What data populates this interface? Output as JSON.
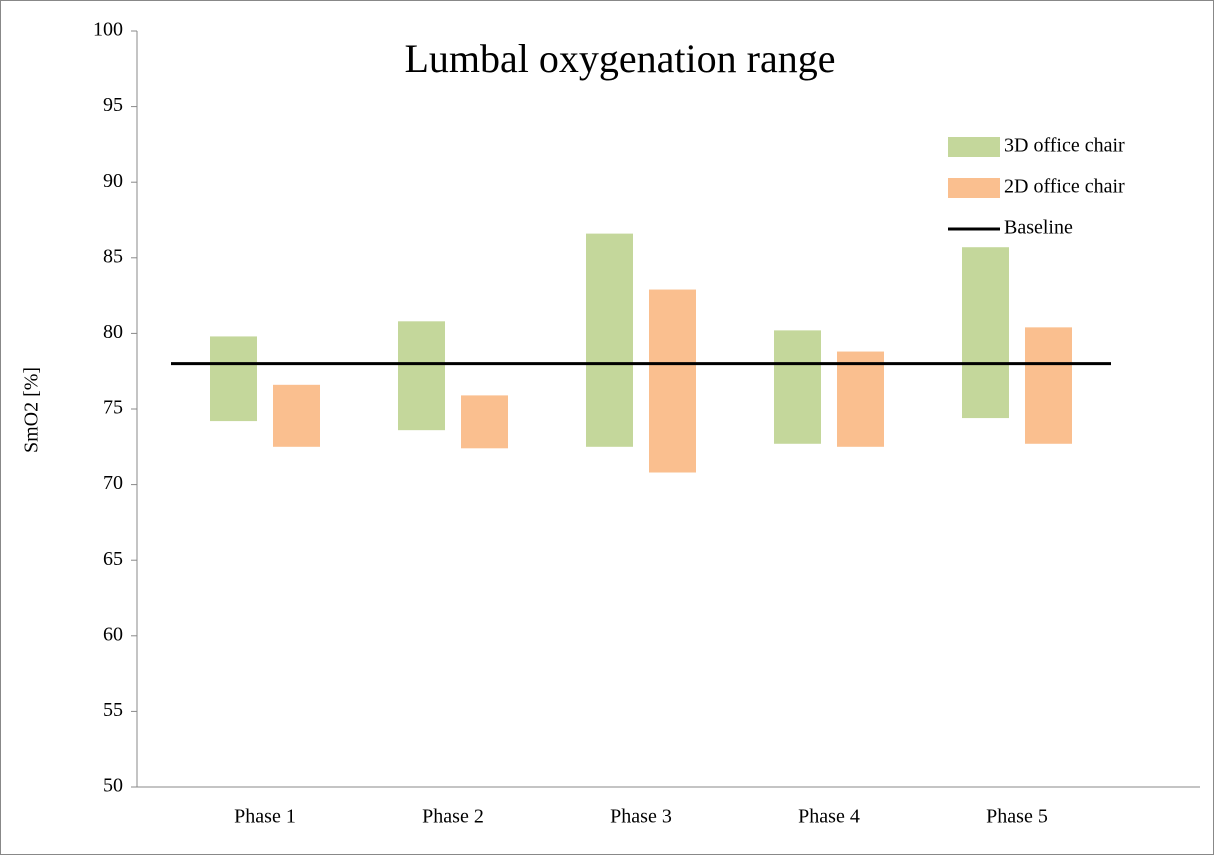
{
  "chart_data": {
    "type": "range_bar",
    "title": "Lumbal oxygenation range",
    "y_label": "SmO2 [%]",
    "categories": [
      "Phase 1",
      "Phase 2",
      "Phase 3",
      "Phase 4",
      "Phase 5"
    ],
    "series": [
      {
        "name": "3D office chair",
        "color": "#c4d79b",
        "low": [
          74.2,
          73.6,
          72.5,
          72.7,
          74.4
        ],
        "high": [
          79.8,
          80.8,
          86.6,
          80.2,
          85.7
        ]
      },
      {
        "name": "2D office chair",
        "color": "#fabf8f",
        "low": [
          72.5,
          72.4,
          70.8,
          72.5,
          72.7
        ],
        "high": [
          76.6,
          75.9,
          82.9,
          78.8,
          80.4
        ]
      }
    ],
    "baseline": {
      "name": "Baseline",
      "value": 78,
      "color": "#000000"
    },
    "ylim": [
      50,
      100
    ],
    "yticks": [
      50,
      55,
      60,
      65,
      70,
      75,
      80,
      85,
      90,
      95,
      100
    ]
  }
}
